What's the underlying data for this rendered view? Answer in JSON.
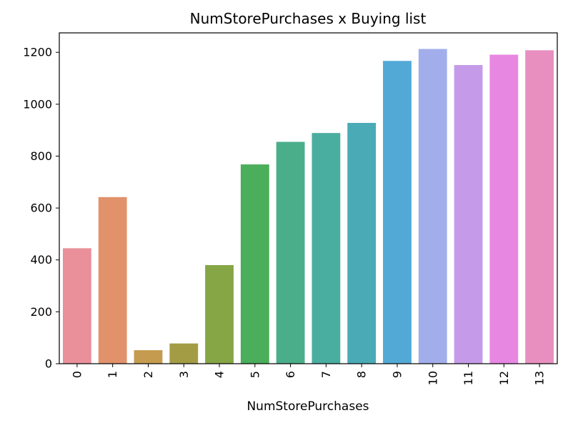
{
  "chart_data": {
    "type": "bar",
    "title": "NumStorePurchases x Buying list",
    "xlabel": "NumStorePurchases",
    "ylabel": "",
    "categories": [
      "0",
      "1",
      "2",
      "3",
      "4",
      "5",
      "6",
      "7",
      "8",
      "9",
      "10",
      "11",
      "12",
      "13"
    ],
    "values": [
      445,
      642,
      52,
      78,
      380,
      768,
      855,
      889,
      928,
      1167,
      1213,
      1151,
      1191,
      1208
    ],
    "colors": [
      "#e9909b",
      "#e2926b",
      "#c59b4f",
      "#a49c45",
      "#86a646",
      "#4aae5a",
      "#4aae8a",
      "#49aea0",
      "#4aaab6",
      "#53a9d6",
      "#a2aeeb",
      "#c59be9",
      "#e887e1",
      "#e88fc0"
    ],
    "yticks": [
      0,
      200,
      400,
      600,
      800,
      1000,
      1200
    ],
    "ylim": [
      0,
      1275
    ],
    "grid": false,
    "x_tick_rotation": "vertical"
  }
}
